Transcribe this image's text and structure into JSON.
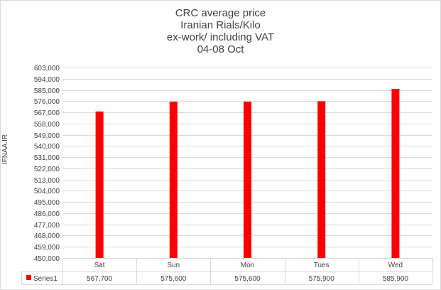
{
  "chart_data": {
    "type": "bar",
    "title_lines": [
      "CRC average price",
      "Iranian Rials/Kilo",
      "ex-work/ including VAT",
      "04-08 Oct"
    ],
    "ylabel": "IFNAA.IR",
    "xlabel": "",
    "categories": [
      "Sat",
      "Sun",
      "Mon",
      "Tues",
      "Wed"
    ],
    "series": [
      {
        "name": "Series1",
        "values": [
          567700,
          575600,
          575600,
          575900,
          585900
        ],
        "color": "#ff0000"
      }
    ],
    "value_labels": [
      "567,700",
      "575,600",
      "575,600",
      "575,900",
      "585,900"
    ],
    "ylim": [
      450000,
      603000
    ],
    "yticks": [
      450000,
      459000,
      468000,
      477000,
      486000,
      495000,
      504000,
      513000,
      522000,
      531000,
      540000,
      549000,
      558000,
      567000,
      576000,
      585000,
      594000,
      603000
    ],
    "ytick_labels": [
      "450,000",
      "459,000",
      "468,000",
      "477,000",
      "486,000",
      "495,000",
      "504,000",
      "513,000",
      "522,000",
      "531,000",
      "540,000",
      "549,000",
      "558,000",
      "567,000",
      "576,000",
      "585,000",
      "594,000",
      "603,000"
    ],
    "grid": true,
    "legend": "data-table",
    "colors": {
      "bar": "#ff0000",
      "grid": "#d9d9d9",
      "text": "#404040"
    }
  }
}
